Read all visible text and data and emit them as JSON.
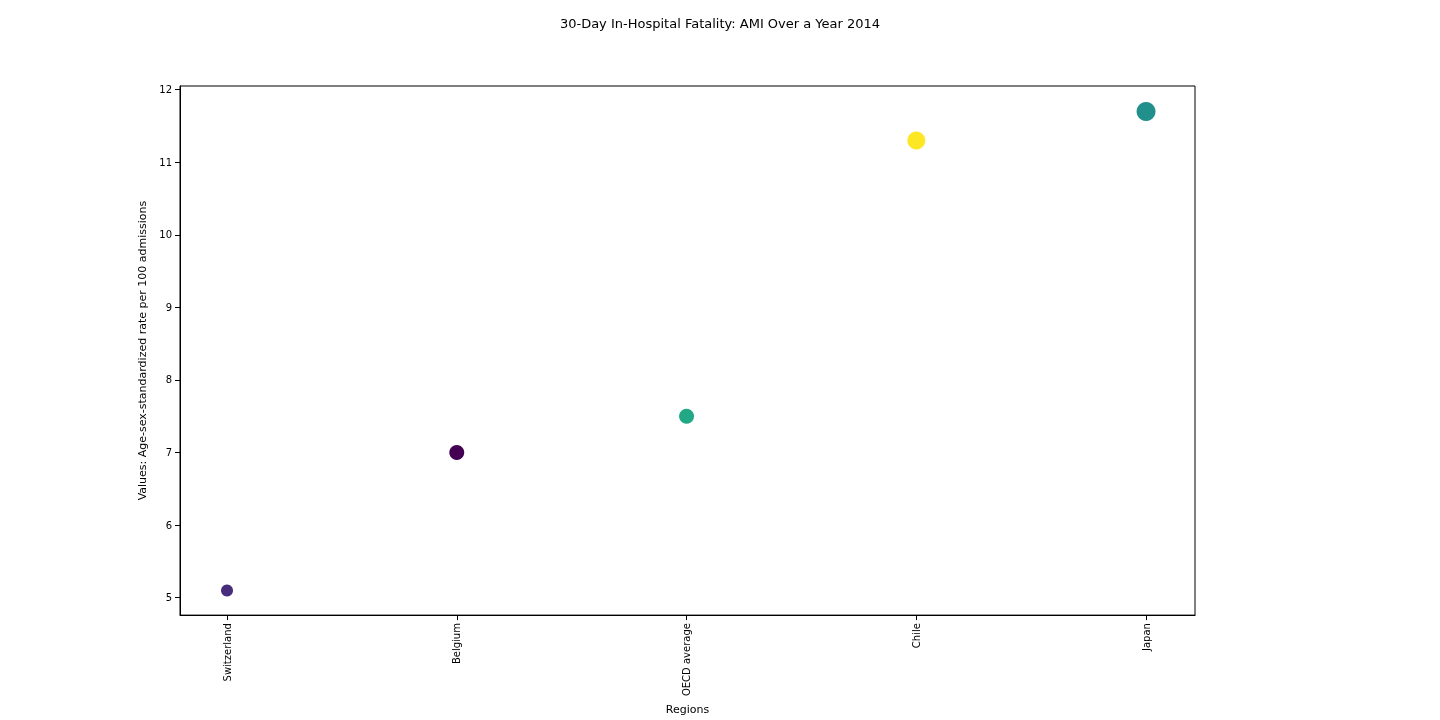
{
  "chart_data": {
    "type": "bubble",
    "title": "30-Day In-Hospital Fatality: AMI Over a Year 2014",
    "xlabel": "Regions",
    "ylabel": "Values: Age-sex-standardized rate per 100 admissions",
    "categories": [
      "Switzerland",
      "Belgium",
      "OECD average",
      "Chile",
      "Japan"
    ],
    "values": [
      5.1,
      7.0,
      7.5,
      11.3,
      11.7
    ],
    "sizes": [
      0.4,
      0.62,
      0.62,
      0.9,
      1
    ],
    "colors": [
      "#472d7b",
      "#440154",
      "#22a884",
      "#fde725",
      "#21908d"
    ],
    "ylim": [
      4.76,
      12.05
    ],
    "yticks": [
      5,
      6,
      7,
      8,
      9,
      10,
      11,
      12
    ],
    "grid": false
  }
}
